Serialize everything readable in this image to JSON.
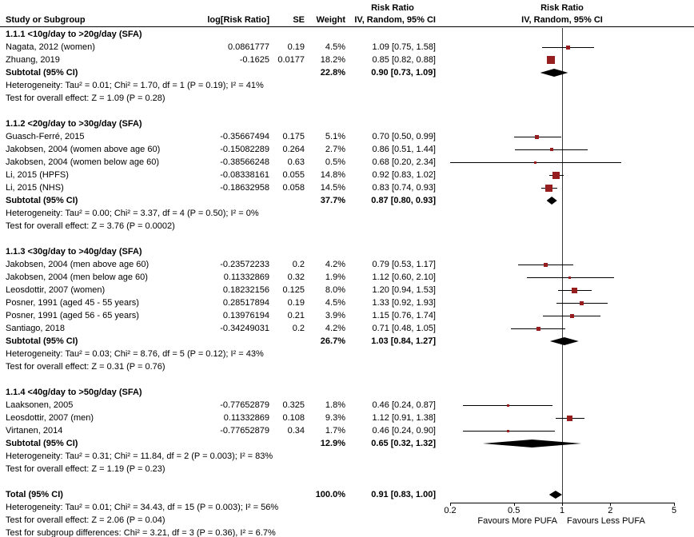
{
  "chart_data": {
    "type": "forest",
    "x_scale": "log",
    "x_range": [
      0.2,
      5
    ],
    "x_ticks": [
      "0.2",
      "0.5",
      "1",
      "2",
      "5"
    ],
    "null_line": 1,
    "marker_color": "#961e1e",
    "diamond_color": "#000000",
    "columns": {
      "study": "Study or Subgroup",
      "log_rr": "log[Risk Ratio]",
      "se": "SE",
      "weight": "Weight",
      "effect_title": "Risk Ratio",
      "effect_sub": "IV, Random, 95% CI",
      "plot_title": "Risk Ratio",
      "plot_sub": "IV, Random, 95% CI"
    },
    "axis_labels": {
      "left": "Favours More PUFA",
      "right": "Favours Less PUFA"
    },
    "subgroups": [
      {
        "title": "1.1.1 <10g/day to >20g/day (SFA)",
        "studies": [
          {
            "name": "Nagata, 2012 (women)",
            "log_rr": "0.0861777",
            "se": "0.19",
            "weight": "4.5%",
            "weight_value": 4.5,
            "ci_text": "1.09 [0.75, 1.58]",
            "est": 1.09,
            "lo": 0.75,
            "hi": 1.58
          },
          {
            "name": "Zhuang, 2019",
            "log_rr": "-0.1625",
            "se": "0.0177",
            "weight": "18.2%",
            "weight_value": 18.2,
            "ci_text": "0.85 [0.82, 0.88]",
            "est": 0.85,
            "lo": 0.82,
            "hi": 0.88
          }
        ],
        "subtotal": {
          "label": "Subtotal (95% CI)",
          "weight": "22.8%",
          "ci_text": "0.90 [0.73, 1.09]",
          "est": 0.9,
          "lo": 0.73,
          "hi": 1.09
        },
        "heterogeneity": "Heterogeneity: Tau² = 0.01; Chi² = 1.70, df = 1 (P = 0.19); I² = 41%",
        "overall_test": "Test for overall effect: Z = 1.09 (P = 0.28)"
      },
      {
        "title": "1.1.2 <20g/day to >30g/day (SFA)",
        "studies": [
          {
            "name": "Guasch-Ferré, 2015",
            "log_rr": "-0.35667494",
            "se": "0.175",
            "weight": "5.1%",
            "weight_value": 5.1,
            "ci_text": "0.70 [0.50, 0.99]",
            "est": 0.7,
            "lo": 0.5,
            "hi": 0.99
          },
          {
            "name": "Jakobsen, 2004 (women above age 60)",
            "log_rr": "-0.15082289",
            "se": "0.264",
            "weight": "2.7%",
            "weight_value": 2.7,
            "ci_text": "0.86 [0.51, 1.44]",
            "est": 0.86,
            "lo": 0.51,
            "hi": 1.44
          },
          {
            "name": "Jakobsen, 2004 (women below age 60)",
            "log_rr": "-0.38566248",
            "se": "0.63",
            "weight": "0.5%",
            "weight_value": 0.5,
            "ci_text": "0.68 [0.20, 2.34]",
            "est": 0.68,
            "lo": 0.2,
            "hi": 2.34
          },
          {
            "name": "Li, 2015 (HPFS)",
            "log_rr": "-0.08338161",
            "se": "0.055",
            "weight": "14.8%",
            "weight_value": 14.8,
            "ci_text": "0.92 [0.83, 1.02]",
            "est": 0.92,
            "lo": 0.83,
            "hi": 1.02
          },
          {
            "name": "Li, 2015 (NHS)",
            "log_rr": "-0.18632958",
            "se": "0.058",
            "weight": "14.5%",
            "weight_value": 14.5,
            "ci_text": "0.83 [0.74, 0.93]",
            "est": 0.83,
            "lo": 0.74,
            "hi": 0.93
          }
        ],
        "subtotal": {
          "label": "Subtotal (95% CI)",
          "weight": "37.7%",
          "ci_text": "0.87 [0.80, 0.93]",
          "est": 0.87,
          "lo": 0.8,
          "hi": 0.93
        },
        "heterogeneity": "Heterogeneity: Tau² = 0.00; Chi² = 3.37, df = 4 (P = 0.50); I² = 0%",
        "overall_test": "Test for overall effect: Z = 3.76 (P = 0.0002)"
      },
      {
        "title": "1.1.3 <30g/day to >40g/day (SFA)",
        "studies": [
          {
            "name": "Jakobsen, 2004 (men above age 60)",
            "log_rr": "-0.23572233",
            "se": "0.2",
            "weight": "4.2%",
            "weight_value": 4.2,
            "ci_text": "0.79 [0.53, 1.17]",
            "est": 0.79,
            "lo": 0.53,
            "hi": 1.17
          },
          {
            "name": "Jakobsen, 2004 (men below age 60)",
            "log_rr": "0.11332869",
            "se": "0.32",
            "weight": "1.9%",
            "weight_value": 1.9,
            "ci_text": "1.12 [0.60, 2.10]",
            "est": 1.12,
            "lo": 0.6,
            "hi": 2.1
          },
          {
            "name": "Leosdottir, 2007 (women)",
            "log_rr": "0.18232156",
            "se": "0.125",
            "weight": "8.0%",
            "weight_value": 8.0,
            "ci_text": "1.20 [0.94, 1.53]",
            "est": 1.2,
            "lo": 0.94,
            "hi": 1.53
          },
          {
            "name": "Posner, 1991 (aged 45 - 55 years)",
            "log_rr": "0.28517894",
            "se": "0.19",
            "weight": "4.5%",
            "weight_value": 4.5,
            "ci_text": "1.33 [0.92, 1.93]",
            "est": 1.33,
            "lo": 0.92,
            "hi": 1.93
          },
          {
            "name": "Posner, 1991 (aged 56 - 65 years)",
            "log_rr": "0.13976194",
            "se": "0.21",
            "weight": "3.9%",
            "weight_value": 3.9,
            "ci_text": "1.15 [0.76, 1.74]",
            "est": 1.15,
            "lo": 0.76,
            "hi": 1.74
          },
          {
            "name": "Santiago, 2018",
            "log_rr": "-0.34249031",
            "se": "0.2",
            "weight": "4.2%",
            "weight_value": 4.2,
            "ci_text": "0.71 [0.48, 1.05]",
            "est": 0.71,
            "lo": 0.48,
            "hi": 1.05
          }
        ],
        "subtotal": {
          "label": "Subtotal (95% CI)",
          "weight": "26.7%",
          "ci_text": "1.03 [0.84, 1.27]",
          "est": 1.03,
          "lo": 0.84,
          "hi": 1.27
        },
        "heterogeneity": "Heterogeneity: Tau² = 0.03; Chi² = 8.76, df = 5 (P = 0.12); I² = 43%",
        "overall_test": "Test for overall effect: Z = 0.31 (P = 0.76)"
      },
      {
        "title": "1.1.4 <40g/day to >50g/day (SFA)",
        "studies": [
          {
            "name": "Laaksonen, 2005",
            "log_rr": "-0.77652879",
            "se": "0.325",
            "weight": "1.8%",
            "weight_value": 1.8,
            "ci_text": "0.46 [0.24, 0.87]",
            "est": 0.46,
            "lo": 0.24,
            "hi": 0.87
          },
          {
            "name": "Leosdottir, 2007 (men)",
            "log_rr": "0.11332869",
            "se": "0.108",
            "weight": "9.3%",
            "weight_value": 9.3,
            "ci_text": "1.12 [0.91, 1.38]",
            "est": 1.12,
            "lo": 0.91,
            "hi": 1.38
          },
          {
            "name": "Virtanen, 2014",
            "log_rr": "-0.77652879",
            "se": "0.34",
            "weight": "1.7%",
            "weight_value": 1.7,
            "ci_text": "0.46 [0.24, 0.90]",
            "est": 0.46,
            "lo": 0.24,
            "hi": 0.9
          }
        ],
        "subtotal": {
          "label": "Subtotal (95% CI)",
          "weight": "12.9%",
          "ci_text": "0.65 [0.32, 1.32]",
          "est": 0.65,
          "lo": 0.32,
          "hi": 1.32
        },
        "heterogeneity": "Heterogeneity: Tau² = 0.31; Chi² = 11.84, df = 2 (P = 0.003); I² = 83%",
        "overall_test": "Test for overall effect: Z = 1.19 (P = 0.23)"
      }
    ],
    "total": {
      "label": "Total (95% CI)",
      "weight": "100.0%",
      "ci_text": "0.91 [0.83, 1.00]",
      "est": 0.91,
      "lo": 0.83,
      "hi": 1.0,
      "heterogeneity": "Heterogeneity: Tau² = 0.01; Chi² = 34.43, df = 15 (P = 0.003); I² = 56%",
      "overall_test": "Test for overall effect: Z = 2.06 (P = 0.04)",
      "subgroup_diff": "Test for subgroup differences: Chi² = 3.21, df = 3 (P = 0.36), I² = 6.7%"
    }
  }
}
